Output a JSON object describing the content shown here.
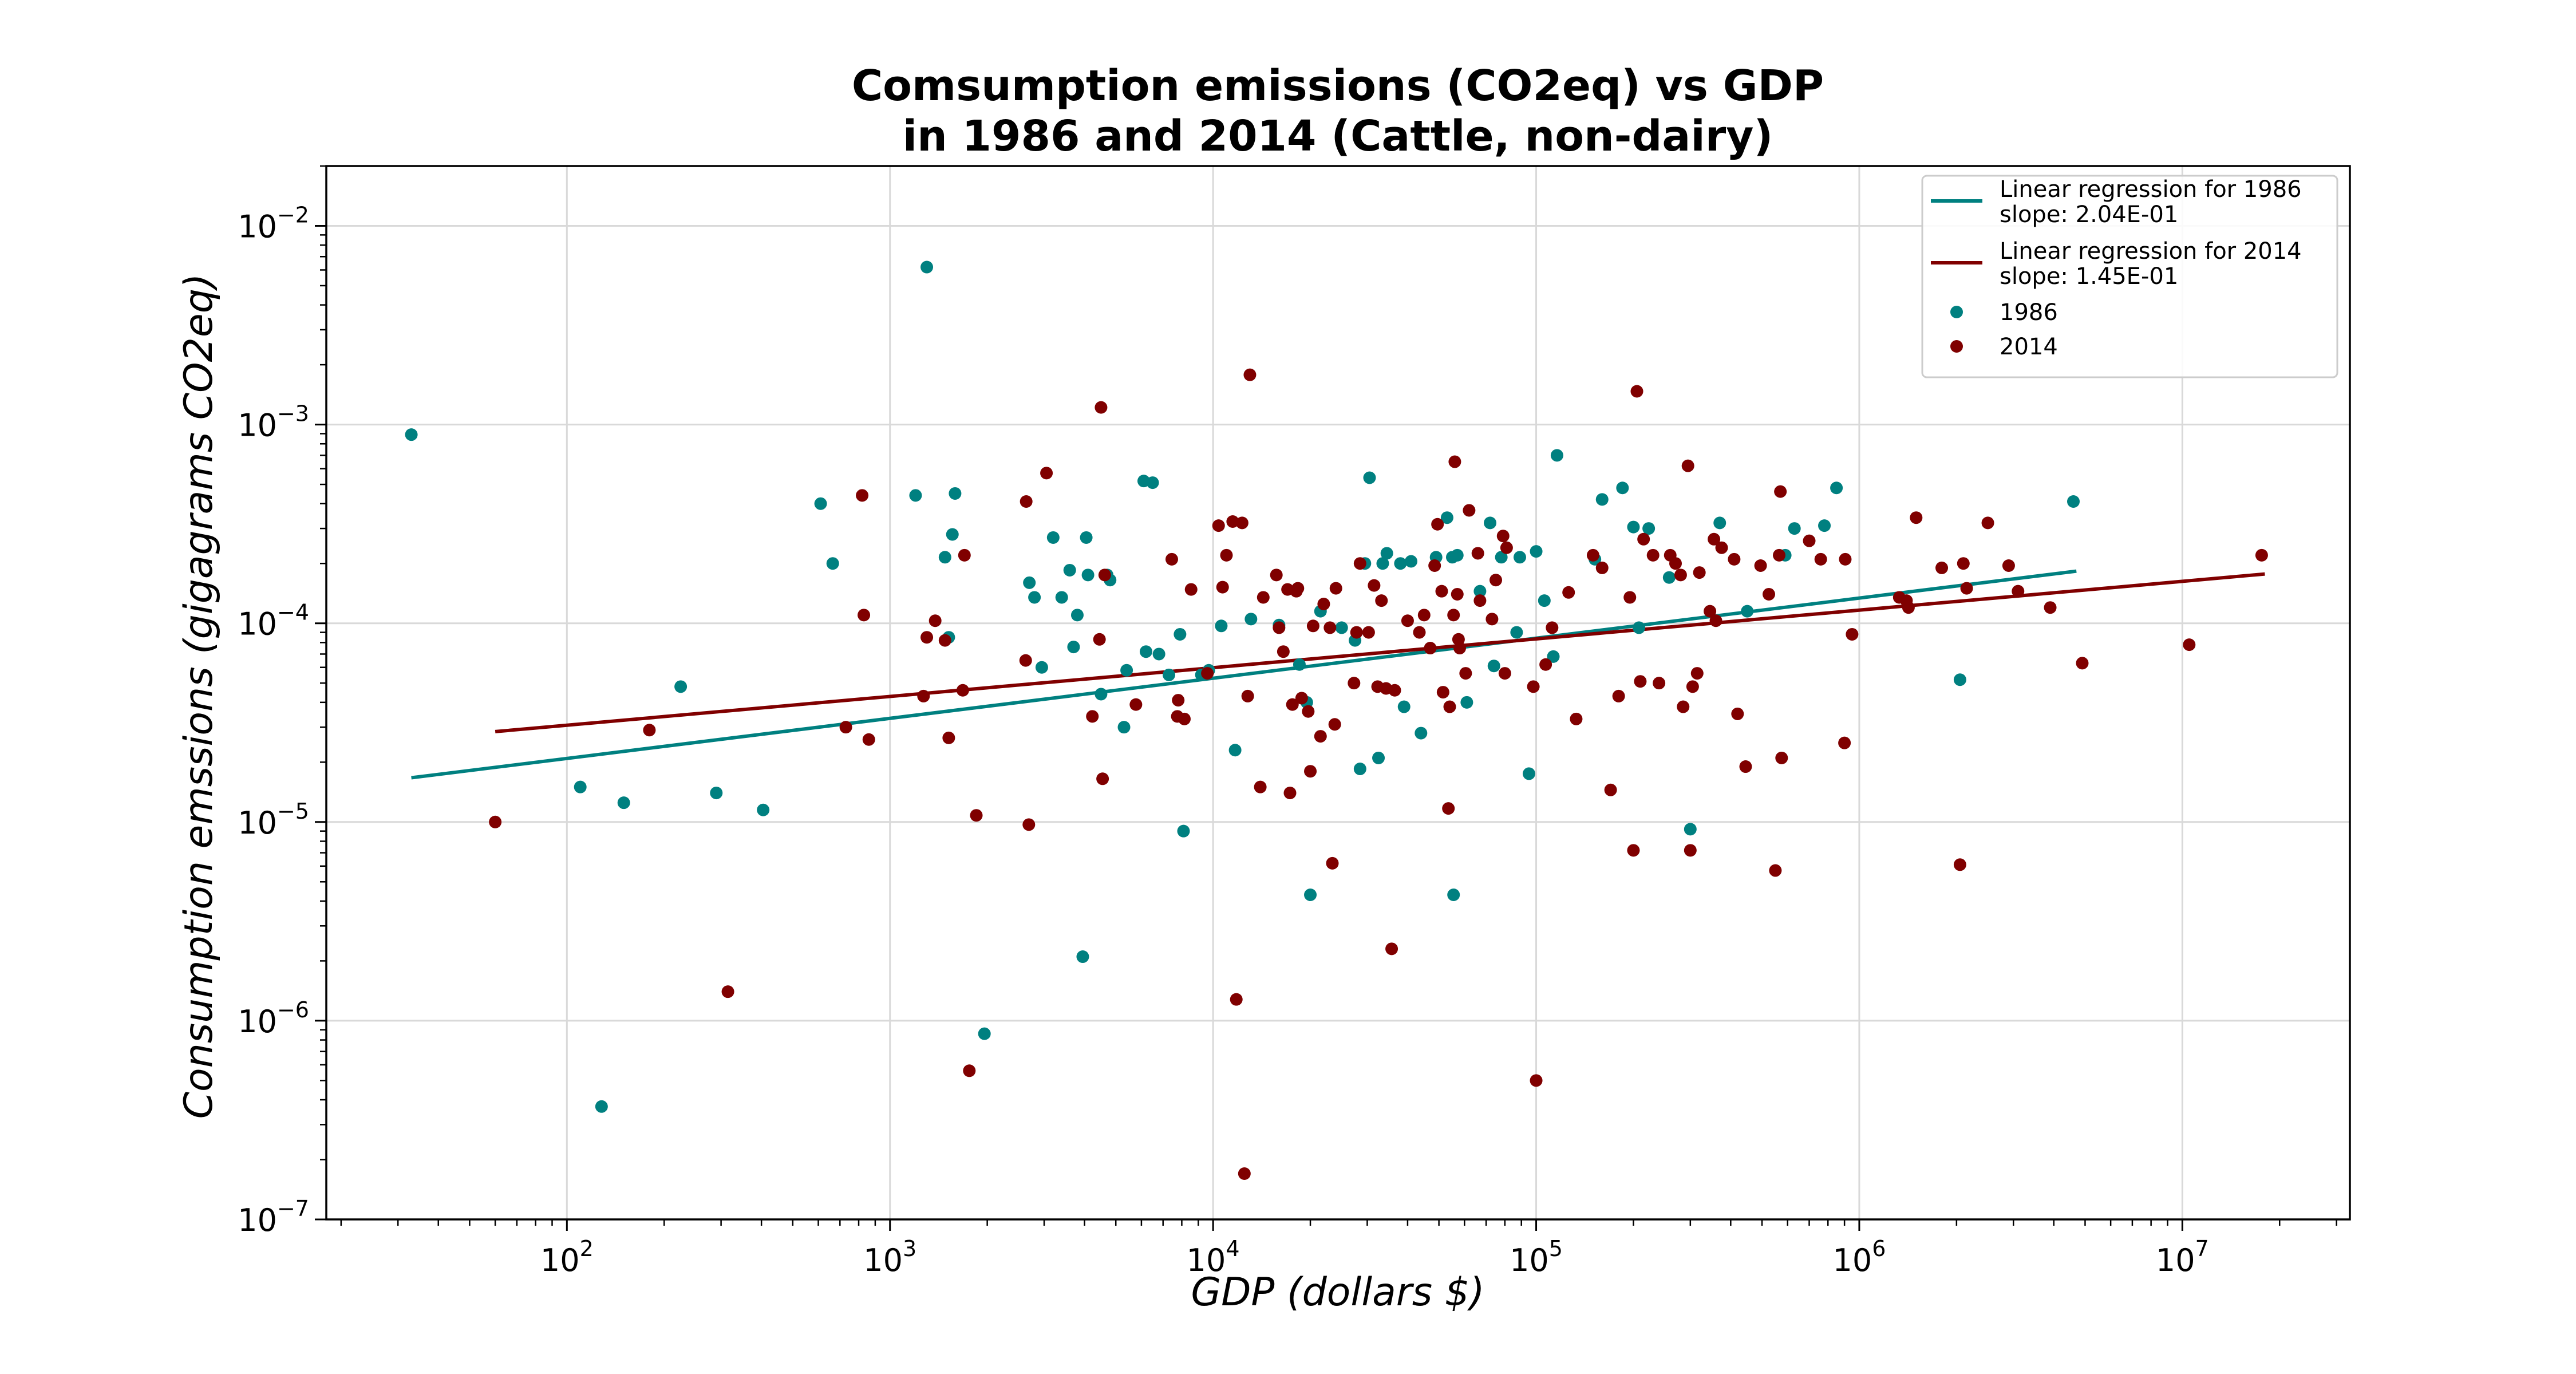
{
  "chart_data": {
    "type": "scatter",
    "title": "Comsumption emissions (CO2eq) vs GDP\nin 1986 and 2014 (Cattle, non-dairy)",
    "xlabel": "GDP (dollars $)",
    "ylabel": "Consumption emssions (gigagrams CO2eq)",
    "xscale": "log",
    "yscale": "log",
    "xlim": [
      18,
      33000000
    ],
    "ylim": [
      1e-07,
      0.02
    ],
    "x_ticks": [
      {
        "value": 100,
        "base": "10",
        "exp": "2"
      },
      {
        "value": 1000,
        "base": "10",
        "exp": "3"
      },
      {
        "value": 10000,
        "base": "10",
        "exp": "4"
      },
      {
        "value": 100000,
        "base": "10",
        "exp": "5"
      },
      {
        "value": 1000000,
        "base": "10",
        "exp": "6"
      },
      {
        "value": 10000000,
        "base": "10",
        "exp": "7"
      }
    ],
    "y_ticks": [
      {
        "value": 1e-07,
        "base": "10",
        "exp": "−7"
      },
      {
        "value": 1e-06,
        "base": "10",
        "exp": "−6"
      },
      {
        "value": 1e-05,
        "base": "10",
        "exp": "−5"
      },
      {
        "value": 0.0001,
        "base": "10",
        "exp": "−4"
      },
      {
        "value": 0.001,
        "base": "10",
        "exp": "−3"
      },
      {
        "value": 0.01,
        "base": "10",
        "exp": "−2"
      }
    ],
    "grid": true,
    "legend_position": "top-right",
    "regressions": [
      {
        "name": "Linear regression for 1986\nslope: 2.04E-01",
        "color": "#008080",
        "x": [
          33,
          4700000
        ],
        "y": [
          1.67e-05,
          0.000183
        ]
      },
      {
        "name": "Linear regression for 2014\nslope: 1.45E-01",
        "color": "#800000",
        "x": [
          60,
          18000000
        ],
        "y": [
          2.85e-05,
          0.000177
        ]
      }
    ],
    "series": [
      {
        "name": "1986",
        "color": "#008080",
        "points": [
          [
            33,
            0.00089
          ],
          [
            110,
            1.5e-05
          ],
          [
            128,
            3.7e-07
          ],
          [
            150,
            1.25e-05
          ],
          [
            225,
            4.8e-05
          ],
          [
            290,
            1.4e-05
          ],
          [
            405,
            1.15e-05
          ],
          [
            610,
            0.0004
          ],
          [
            665,
            0.0002
          ],
          [
            1200,
            0.00044
          ],
          [
            1300,
            0.0062
          ],
          [
            1480,
            0.000215
          ],
          [
            1520,
            8.5e-05
          ],
          [
            1560,
            0.00028
          ],
          [
            1590,
            0.00045
          ],
          [
            1960,
            8.6e-07
          ],
          [
            2700,
            0.00016
          ],
          [
            2800,
            0.000135
          ],
          [
            2950,
            6e-05
          ],
          [
            3200,
            0.00027
          ],
          [
            3400,
            0.000135
          ],
          [
            3600,
            0.000185
          ],
          [
            3700,
            7.6e-05
          ],
          [
            3800,
            0.00011
          ],
          [
            3950,
            2.1e-06
          ],
          [
            4050,
            0.00027
          ],
          [
            4100,
            0.000175
          ],
          [
            4500,
            4.4e-05
          ],
          [
            4700,
            0.000175
          ],
          [
            4800,
            0.000165
          ],
          [
            5300,
            3e-05
          ],
          [
            5400,
            5.8e-05
          ],
          [
            6100,
            0.00052
          ],
          [
            6200,
            7.2e-05
          ],
          [
            6500,
            0.00051
          ],
          [
            6800,
            7e-05
          ],
          [
            7300,
            5.5e-05
          ],
          [
            7900,
            8.8e-05
          ],
          [
            8100,
            9e-06
          ],
          [
            9200,
            5.5e-05
          ],
          [
            9700,
            5.8e-05
          ],
          [
            10600,
            9.7e-05
          ],
          [
            11700,
            2.3e-05
          ],
          [
            13100,
            0.000105
          ],
          [
            16000,
            9.8e-05
          ],
          [
            18500,
            6.2e-05
          ],
          [
            19500,
            4e-05
          ],
          [
            20000,
            4.3e-06
          ],
          [
            21500,
            0.000115
          ],
          [
            25000,
            9.5e-05
          ],
          [
            27500,
            8.2e-05
          ],
          [
            28500,
            1.85e-05
          ],
          [
            29500,
            0.0002
          ],
          [
            30500,
            0.00054
          ],
          [
            32500,
            2.1e-05
          ],
          [
            33500,
            0.0002
          ],
          [
            34500,
            0.000225
          ],
          [
            38000,
            0.0002
          ],
          [
            39000,
            3.8e-05
          ],
          [
            41000,
            0.000205
          ],
          [
            44000,
            2.8e-05
          ],
          [
            49000,
            0.000215
          ],
          [
            53000,
            0.00034
          ],
          [
            55000,
            0.000215
          ],
          [
            55500,
            4.3e-06
          ],
          [
            57000,
            0.00022
          ],
          [
            61000,
            4e-05
          ],
          [
            67000,
            0.000145
          ],
          [
            72000,
            0.00032
          ],
          [
            74000,
            6.1e-05
          ],
          [
            78000,
            0.000215
          ],
          [
            87000,
            9e-05
          ],
          [
            89000,
            0.000215
          ],
          [
            95000,
            1.75e-05
          ],
          [
            100000,
            0.00023
          ],
          [
            106000,
            0.00013
          ],
          [
            113000,
            6.8e-05
          ],
          [
            116000,
            0.0007
          ],
          [
            152000,
            0.00021
          ],
          [
            160000,
            0.00042
          ],
          [
            185000,
            0.00048
          ],
          [
            200000,
            0.000305
          ],
          [
            208000,
            9.5e-05
          ],
          [
            223000,
            0.0003
          ],
          [
            258000,
            0.00017
          ],
          [
            300000,
            9.2e-06
          ],
          [
            370000,
            0.00032
          ],
          [
            450000,
            0.000115
          ],
          [
            590000,
            0.00022
          ],
          [
            630000,
            0.0003
          ],
          [
            780000,
            0.00031
          ],
          [
            850000,
            0.00048
          ],
          [
            2050000,
            5.2e-05
          ],
          [
            4600000,
            0.00041
          ]
        ]
      },
      {
        "name": "2014",
        "color": "#800000",
        "points": [
          [
            60,
            1e-05
          ],
          [
            180,
            2.9e-05
          ],
          [
            315,
            1.4e-06
          ],
          [
            730,
            3e-05
          ],
          [
            820,
            0.00044
          ],
          [
            830,
            0.00011
          ],
          [
            860,
            2.6e-05
          ],
          [
            1270,
            4.3e-05
          ],
          [
            1300,
            8.5e-05
          ],
          [
            1380,
            0.000103
          ],
          [
            1480,
            8.2e-05
          ],
          [
            1520,
            2.65e-05
          ],
          [
            1680,
            4.6e-05
          ],
          [
            1700,
            0.00022
          ],
          [
            1760,
            5.6e-07
          ],
          [
            1850,
            1.08e-05
          ],
          [
            2630,
            6.5e-05
          ],
          [
            2640,
            0.00041
          ],
          [
            2690,
            9.7e-06
          ],
          [
            3050,
            0.00057
          ],
          [
            4230,
            3.4e-05
          ],
          [
            4450,
            8.3e-05
          ],
          [
            4500,
            0.00122
          ],
          [
            4550,
            1.65e-05
          ],
          [
            4620,
            0.000175
          ],
          [
            5770,
            3.9e-05
          ],
          [
            7450,
            0.00021
          ],
          [
            7750,
            3.4e-05
          ],
          [
            7800,
            4.1e-05
          ],
          [
            8150,
            3.3e-05
          ],
          [
            8550,
            0.000148
          ],
          [
            9600,
            5.6e-05
          ],
          [
            10400,
            0.00031
          ],
          [
            10700,
            0.000152
          ],
          [
            11000,
            0.00022
          ],
          [
            11500,
            0.000325
          ],
          [
            11800,
            1.28e-06
          ],
          [
            12300,
            0.00032
          ],
          [
            12500,
            1.7e-07
          ],
          [
            12800,
            4.3e-05
          ],
          [
            13000,
            0.00178
          ],
          [
            14000,
            1.5e-05
          ],
          [
            14300,
            0.000135
          ],
          [
            15700,
            0.000175
          ],
          [
            16000,
            9.5e-05
          ],
          [
            16500,
            7.2e-05
          ],
          [
            17000,
            0.000148
          ],
          [
            17300,
            1.4e-05
          ],
          [
            17600,
            3.9e-05
          ],
          [
            18100,
            0.000145
          ],
          [
            18300,
            0.00015
          ],
          [
            18800,
            4.2e-05
          ],
          [
            19700,
            3.6e-05
          ],
          [
            20000,
            1.8e-05
          ],
          [
            20400,
            9.7e-05
          ],
          [
            21500,
            2.7e-05
          ],
          [
            22000,
            0.000125
          ],
          [
            23000,
            9.5e-05
          ],
          [
            23400,
            6.2e-06
          ],
          [
            23800,
            3.1e-05
          ],
          [
            24000,
            0.00015
          ],
          [
            27300,
            5e-05
          ],
          [
            27800,
            9e-05
          ],
          [
            28500,
            0.0002
          ],
          [
            30300,
            9e-05
          ],
          [
            31500,
            0.000155
          ],
          [
            32300,
            4.8e-05
          ],
          [
            33200,
            0.00013
          ],
          [
            34300,
            4.7e-05
          ],
          [
            35700,
            2.3e-06
          ],
          [
            36500,
            4.6e-05
          ],
          [
            40000,
            0.000103
          ],
          [
            43500,
            9e-05
          ],
          [
            45000,
            0.00011
          ],
          [
            47000,
            7.5e-05
          ],
          [
            48500,
            0.000195
          ],
          [
            49500,
            0.000315
          ],
          [
            51000,
            0.000145
          ],
          [
            51500,
            4.5e-05
          ],
          [
            53500,
            1.17e-05
          ],
          [
            54000,
            3.8e-05
          ],
          [
            55500,
            0.00011
          ],
          [
            56000,
            0.00065
          ],
          [
            57000,
            0.00014
          ],
          [
            57500,
            8.3e-05
          ],
          [
            58000,
            7.5e-05
          ],
          [
            60500,
            5.6e-05
          ],
          [
            62000,
            0.00037
          ],
          [
            66000,
            0.000225
          ],
          [
            67000,
            0.00013
          ],
          [
            73000,
            0.000105
          ],
          [
            75000,
            0.000165
          ],
          [
            79000,
            0.000275
          ],
          [
            80000,
            5.6e-05
          ],
          [
            81000,
            0.00024
          ],
          [
            98000,
            4.8e-05
          ],
          [
            100000,
            5e-07
          ],
          [
            107000,
            6.2e-05
          ],
          [
            112000,
            9.5e-05
          ],
          [
            126000,
            0.000143
          ],
          [
            133000,
            3.3e-05
          ],
          [
            150000,
            0.00022
          ],
          [
            160000,
            0.00019
          ],
          [
            170000,
            1.45e-05
          ],
          [
            180000,
            4.3e-05
          ],
          [
            195000,
            0.000135
          ],
          [
            200000,
            7.2e-06
          ],
          [
            205000,
            0.00147
          ],
          [
            210000,
            5.1e-05
          ],
          [
            215000,
            0.000265
          ],
          [
            230000,
            0.00022
          ],
          [
            240000,
            5e-05
          ],
          [
            260000,
            0.00022
          ],
          [
            270000,
            0.0002
          ],
          [
            280000,
            0.000175
          ],
          [
            285000,
            3.8e-05
          ],
          [
            295000,
            0.00062
          ],
          [
            300000,
            7.2e-06
          ],
          [
            305000,
            4.8e-05
          ],
          [
            315000,
            5.6e-05
          ],
          [
            320000,
            0.00018
          ],
          [
            345000,
            0.000115
          ],
          [
            355000,
            0.000265
          ],
          [
            360000,
            0.000103
          ],
          [
            375000,
            0.00024
          ],
          [
            410000,
            0.00021
          ],
          [
            420000,
            3.5e-05
          ],
          [
            445000,
            1.9e-05
          ],
          [
            495000,
            0.000195
          ],
          [
            525000,
            0.00014
          ],
          [
            550000,
            5.7e-06
          ],
          [
            565000,
            0.00022
          ],
          [
            570000,
            0.00046
          ],
          [
            575000,
            2.1e-05
          ],
          [
            700000,
            0.00026
          ],
          [
            760000,
            0.00021
          ],
          [
            900000,
            2.5e-05
          ],
          [
            905000,
            0.00021
          ],
          [
            950000,
            8.8e-05
          ],
          [
            1330000,
            0.000135
          ],
          [
            1400000,
            0.00013
          ],
          [
            1420000,
            0.00012
          ],
          [
            1500000,
            0.00034
          ],
          [
            1800000,
            0.00019
          ],
          [
            2050000,
            6.1e-06
          ],
          [
            2100000,
            0.0002
          ],
          [
            2150000,
            0.00015
          ],
          [
            2500000,
            0.00032
          ],
          [
            2900000,
            0.000195
          ],
          [
            3100000,
            0.000145
          ],
          [
            3900000,
            0.00012
          ],
          [
            4900000,
            6.3e-05
          ],
          [
            10500000,
            7.8e-05
          ],
          [
            17600000,
            0.00022
          ]
        ]
      }
    ]
  }
}
